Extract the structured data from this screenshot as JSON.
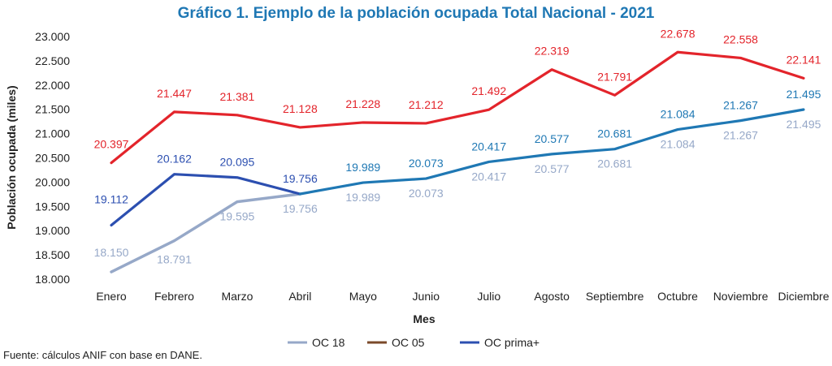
{
  "chart_data": {
    "type": "line",
    "title": "Gráfico 1. Ejemplo de la población ocupada Total Nacional - 2021",
    "xlabel": "Mes",
    "ylabel": "Población ocupada (miles)",
    "ylim": [
      18000,
      23000
    ],
    "yticks": [
      18000,
      18500,
      19000,
      19500,
      20000,
      20500,
      21000,
      21500,
      22000,
      22500,
      23000
    ],
    "ytick_labels": [
      "18.000",
      "18.500",
      "19.000",
      "19.500",
      "20.000",
      "20.500",
      "21.000",
      "21.500",
      "22.000",
      "22.500",
      "23.000"
    ],
    "grid": false,
    "legend_position": "bottom",
    "categories": [
      "Enero",
      "Febrero",
      "Marzo",
      "Abril",
      "Mayo",
      "Junio",
      "Julio",
      "Agosto",
      "Septiembre",
      "Octubre",
      "Noviembre",
      "Diciembre"
    ],
    "series": [
      {
        "name": "OC 18",
        "color": "#96a8c8",
        "values": [
          18150,
          18791,
          19595,
          19756,
          19989,
          20073,
          20417,
          20577,
          20681,
          21084,
          21267,
          21495
        ],
        "labels": [
          "18.150",
          "18.791",
          "19.595",
          "19.756",
          "19.989",
          "20.073",
          "20.417",
          "20.577",
          "20.681",
          "21.084",
          "21.267",
          "21.495"
        ]
      },
      {
        "name": "OC 05",
        "color": "#e3242b",
        "legend_color": "#7b4a2a",
        "values": [
          20397,
          21447,
          21381,
          21128,
          21228,
          21212,
          21492,
          22319,
          21791,
          22678,
          22558,
          22141
        ],
        "labels": [
          "20.397",
          "21.447",
          "21.381",
          "21.128",
          "21.228",
          "21.212",
          "21.492",
          "22.319",
          "21.791",
          "22.678",
          "22.558",
          "22.141"
        ]
      },
      {
        "name": "OC prima+",
        "color": "#1f78b4",
        "early_color": "#2c4fb0",
        "values": [
          19112,
          20162,
          20095,
          19756,
          19989,
          20073,
          20417,
          20577,
          20681,
          21084,
          21267,
          21495
        ],
        "labels": [
          "19.112",
          "20.162",
          "20.095",
          "19.756",
          "19.989",
          "20.073",
          "20.417",
          "20.577",
          "20.681",
          "21.084",
          "21.267",
          "21.495"
        ]
      }
    ],
    "title_color": "#1f78b4",
    "source": "Fuente: cálculos ANIF con base en DANE."
  }
}
